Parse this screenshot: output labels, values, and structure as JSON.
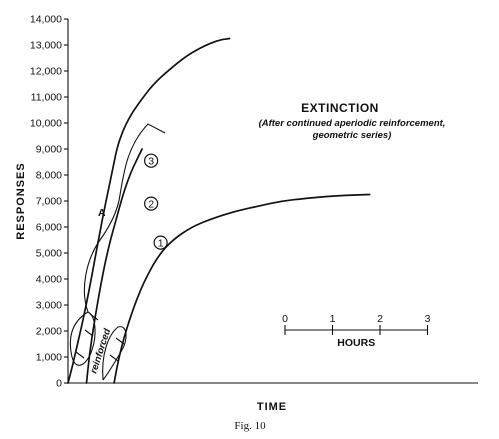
{
  "chart_data": {
    "type": "line",
    "title": "EXTINCTION",
    "subtitle_lines": [
      "(After continued aperiodic reinforcement,",
      "geometric series)"
    ],
    "xlabel": "TIME",
    "ylabel": "RESPONSES",
    "x_unit": "hours",
    "ylim": [
      0,
      14000
    ],
    "y_ticks": [
      0,
      1000,
      2000,
      3000,
      4000,
      5000,
      6000,
      7000,
      8000,
      9000,
      10000,
      11000,
      12000,
      13000,
      14000
    ],
    "y_tick_labels": [
      "0",
      "1,000",
      "2,000",
      "3,000",
      "4,000",
      "5,000",
      "6,000",
      "7,000",
      "8,000",
      "9,000",
      "10,000",
      "11,000",
      "12,000",
      "13,000",
      "14,000"
    ],
    "time_scale": {
      "label": "HOURS",
      "ticks": [
        "0",
        "1",
        "2",
        "3"
      ]
    },
    "series": [
      {
        "name": "1",
        "x": [
          0.97,
          1.05,
          1.2,
          1.4,
          1.6,
          1.9,
          2.2,
          2.6,
          3.0,
          3.5,
          4.0,
          4.5,
          5.0,
          5.6,
          6.35
        ],
        "y": [
          0,
          800,
          1900,
          3000,
          3900,
          4900,
          5500,
          6000,
          6300,
          6600,
          6800,
          7000,
          7100,
          7200,
          7250
        ]
      },
      {
        "name": "2",
        "x": [
          0.39,
          0.45,
          0.55,
          0.7,
          0.85,
          1.0,
          1.15,
          1.3,
          1.45,
          1.56
        ],
        "y": [
          0,
          1100,
          2300,
          3900,
          5200,
          6200,
          7200,
          8000,
          8600,
          9000
        ]
      },
      {
        "name": "3",
        "x": [
          0,
          0.1,
          0.2,
          0.35,
          0.5,
          0.65,
          0.8,
          0.95,
          1.05,
          1.25,
          1.5,
          1.8,
          2.1,
          2.5,
          2.9,
          3.2,
          3.4
        ],
        "y": [
          0,
          700,
          1500,
          2700,
          4100,
          5600,
          7000,
          8300,
          9200,
          10100,
          10800,
          11500,
          12000,
          12600,
          13000,
          13200,
          13250
        ]
      }
    ],
    "annotations": [
      "A",
      "reinforced"
    ],
    "caption": "Fig. 10"
  }
}
